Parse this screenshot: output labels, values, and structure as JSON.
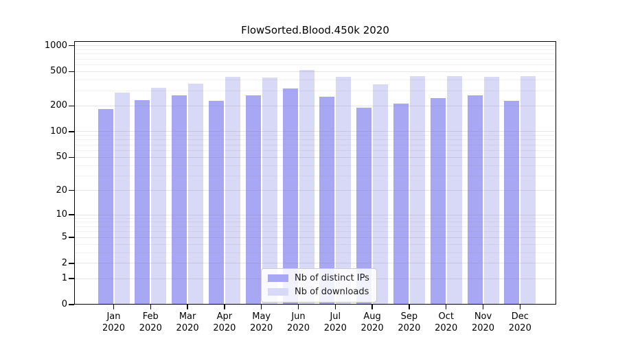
{
  "figure": {
    "background": "#ffffff"
  },
  "chart_data": {
    "type": "bar",
    "title": "FlowSorted.Blood.450k 2020",
    "categories": [
      "Jan 2020",
      "Feb 2020",
      "Mar 2020",
      "Apr 2020",
      "May 2020",
      "Jun 2020",
      "Jul 2020",
      "Aug 2020",
      "Sep 2020",
      "Oct 2020",
      "Nov 2020",
      "Dec 2020"
    ],
    "series": [
      {
        "name": "Nb of distinct IPs",
        "color": "#a7a7f3",
        "values": [
          183,
          231,
          264,
          230,
          264,
          319,
          253,
          189,
          214,
          245,
          264,
          227
        ]
      },
      {
        "name": "Nb of downloads",
        "color": "#d8d8f7",
        "values": [
          286,
          327,
          365,
          438,
          430,
          526,
          437,
          354,
          446,
          443,
          435,
          440
        ]
      }
    ],
    "yscale": "log1p",
    "ylim": [
      0,
      1128
    ],
    "y_major_ticks": [
      0,
      1,
      2,
      5,
      10,
      20,
      50,
      100,
      200,
      500,
      1000
    ],
    "y_minor_ticks": [
      3,
      4,
      6,
      7,
      8,
      9,
      30,
      40,
      60,
      70,
      80,
      90,
      300,
      400,
      600,
      700,
      800,
      900
    ],
    "grid": "horizontal",
    "legend_position": "lower-center"
  }
}
